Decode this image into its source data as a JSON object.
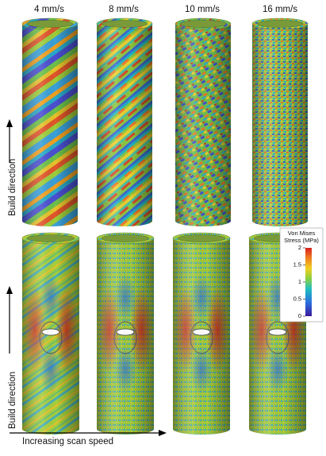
{
  "columns": [
    "4 mm/s",
    "8 mm/s",
    "10 mm/s",
    "16 mm/s"
  ],
  "row_labels": [
    "Build direction",
    "Build direction"
  ],
  "x_axis_label": "Increasing scan speed",
  "colorbar": {
    "title_lines": [
      "Von Mises",
      "Stress (MPa)"
    ],
    "range": [
      0,
      2
    ],
    "ticks": [
      0,
      0.5,
      1,
      1.5,
      2
    ]
  }
}
